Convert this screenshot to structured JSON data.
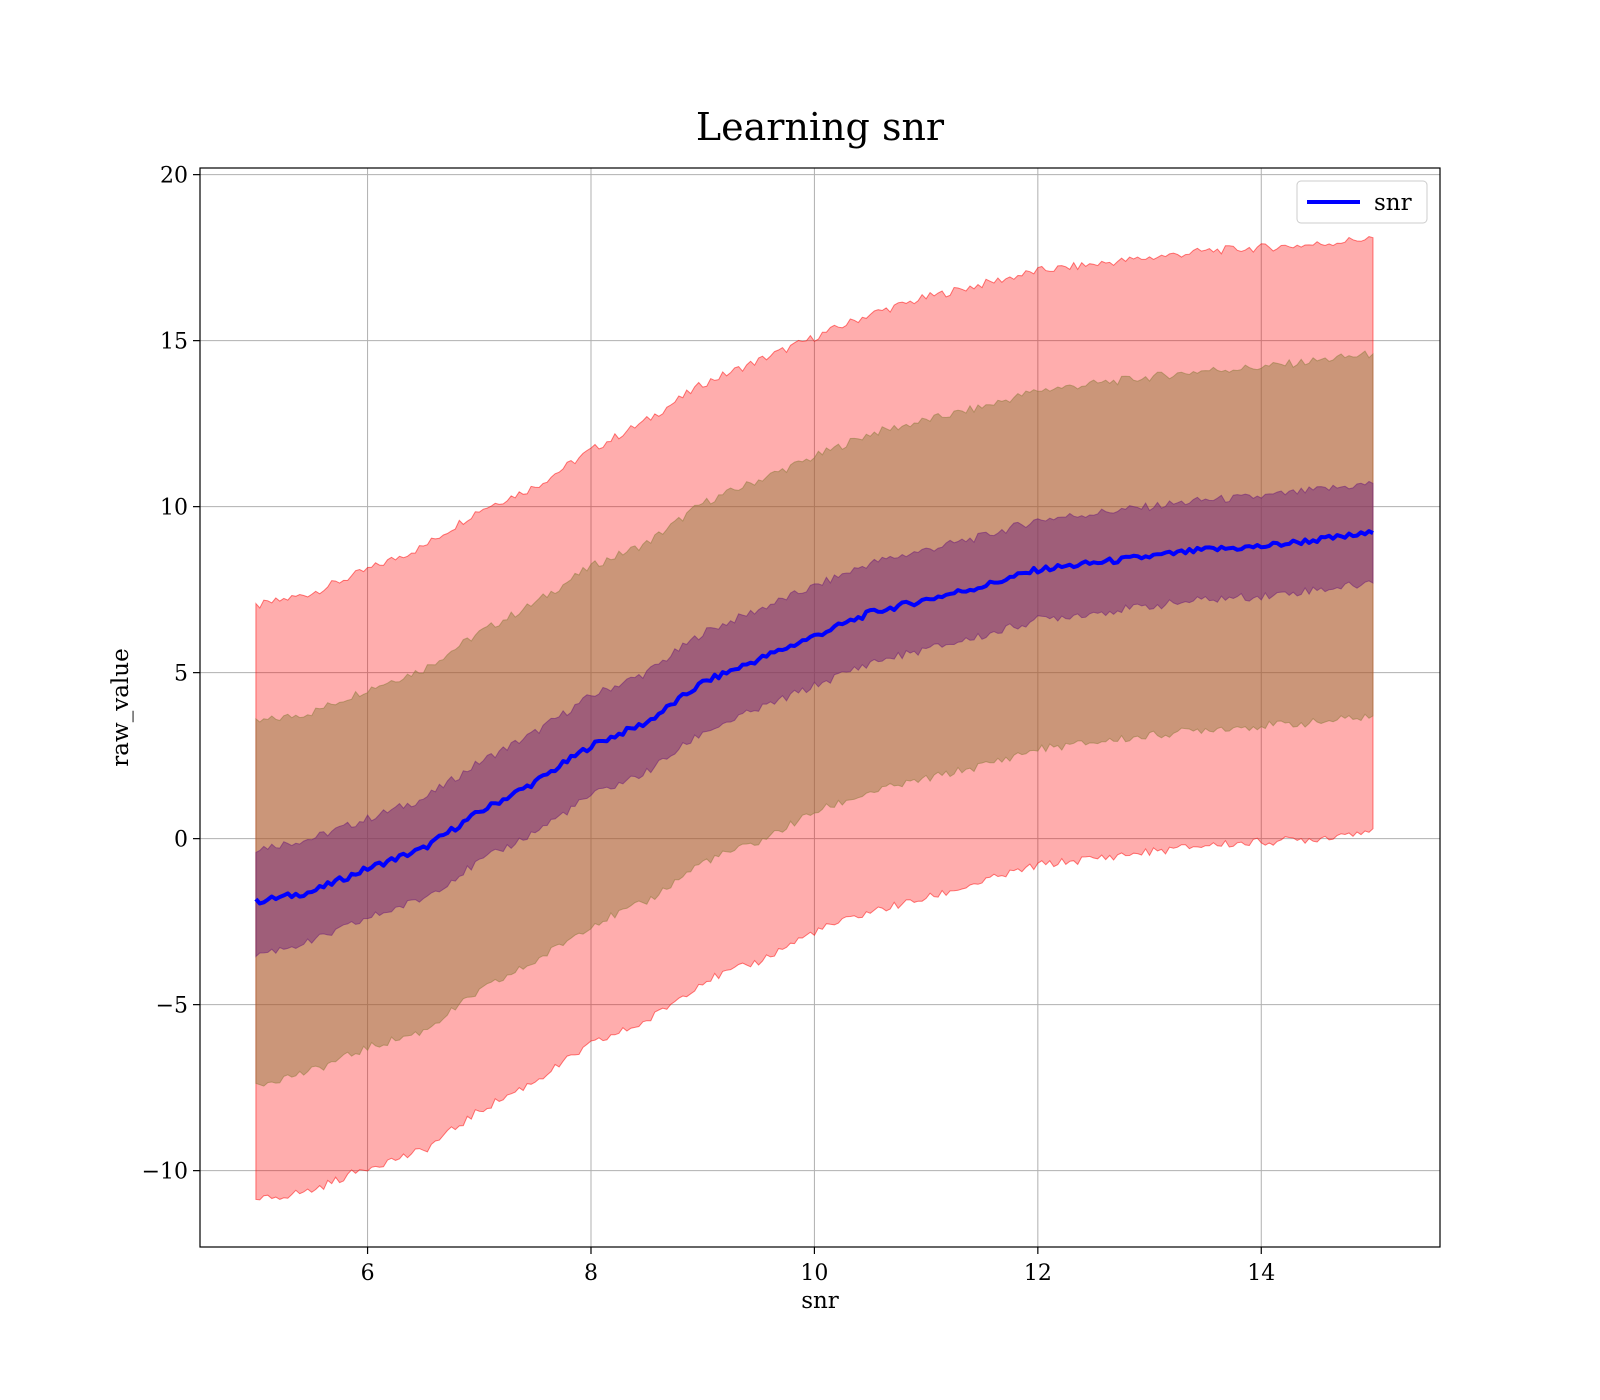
{
  "chart_data": {
    "type": "area",
    "title": "Learning snr",
    "xlabel": "snr",
    "ylabel": "raw_value",
    "xlim": [
      4.5,
      15.6
    ],
    "ylim": [
      -12.3,
      20.2
    ],
    "xticks": [
      6,
      8,
      10,
      12,
      14
    ],
    "yticks": [
      -10,
      -5,
      0,
      5,
      10,
      15,
      20
    ],
    "ytick_labels": [
      "−10",
      "−5",
      "0",
      "5",
      "10",
      "15",
      "20"
    ],
    "xtick_labels": [
      "6",
      "8",
      "10",
      "12",
      "14"
    ],
    "grid": true,
    "legend": {
      "placement": "top-right",
      "entries": [
        "snr"
      ]
    },
    "colors": {
      "mean_line": "#0000ff",
      "band_outer": "#ff0000",
      "band_middle": "#8b7a3a",
      "band_inner": "#6a1a7a",
      "grid": "#b0b0b0"
    },
    "x": [
      5.0,
      5.5,
      6.0,
      6.5,
      7.0,
      7.5,
      8.0,
      8.5,
      9.0,
      9.5,
      10.0,
      10.5,
      11.0,
      11.5,
      12.0,
      12.5,
      13.0,
      13.5,
      14.0,
      14.5,
      15.0
    ],
    "series": [
      {
        "name": "snr",
        "role": "mean",
        "values": [
          -1.9,
          -1.6,
          -0.9,
          -0.3,
          0.8,
          1.7,
          2.8,
          3.5,
          4.7,
          5.4,
          6.1,
          6.8,
          7.2,
          7.6,
          8.1,
          8.3,
          8.5,
          8.7,
          8.8,
          9.0,
          9.2
        ]
      },
      {
        "role": "band_outer_upper",
        "values": [
          7.0,
          7.4,
          8.1,
          8.8,
          9.9,
          10.6,
          11.7,
          12.6,
          13.7,
          14.4,
          15.1,
          15.8,
          16.3,
          16.7,
          17.1,
          17.3,
          17.5,
          17.7,
          17.8,
          17.9,
          18.1
        ]
      },
      {
        "role": "band_outer_lower",
        "values": [
          -10.9,
          -10.6,
          -9.9,
          -9.4,
          -8.2,
          -7.3,
          -6.2,
          -5.5,
          -4.3,
          -3.7,
          -2.8,
          -2.2,
          -1.8,
          -1.3,
          -0.8,
          -0.6,
          -0.4,
          -0.2,
          -0.1,
          0.0,
          0.3
        ]
      },
      {
        "role": "band_middle_upper",
        "values": [
          3.5,
          3.8,
          4.5,
          5.1,
          6.2,
          7.1,
          8.2,
          8.9,
          10.1,
          10.8,
          11.5,
          12.2,
          12.6,
          13.0,
          13.5,
          13.7,
          13.9,
          14.1,
          14.2,
          14.4,
          14.6
        ]
      },
      {
        "role": "band_middle_lower",
        "values": [
          -7.4,
          -7.0,
          -6.3,
          -5.8,
          -4.6,
          -3.7,
          -2.6,
          -1.9,
          -0.7,
          -0.1,
          0.8,
          1.4,
          1.8,
          2.2,
          2.7,
          2.9,
          3.1,
          3.3,
          3.4,
          3.5,
          3.7
        ]
      },
      {
        "role": "band_inner_upper",
        "values": [
          -0.3,
          0.0,
          0.6,
          1.2,
          2.3,
          3.2,
          4.3,
          5.0,
          6.2,
          6.9,
          7.6,
          8.3,
          8.7,
          9.1,
          9.6,
          9.8,
          10.0,
          10.2,
          10.3,
          10.5,
          10.7
        ]
      },
      {
        "role": "band_inner_lower",
        "values": [
          -3.5,
          -3.1,
          -2.4,
          -1.8,
          -0.7,
          0.2,
          1.3,
          2.0,
          3.2,
          3.9,
          4.6,
          5.3,
          5.7,
          6.1,
          6.6,
          6.8,
          7.0,
          7.2,
          7.3,
          7.5,
          7.7
        ]
      }
    ]
  }
}
